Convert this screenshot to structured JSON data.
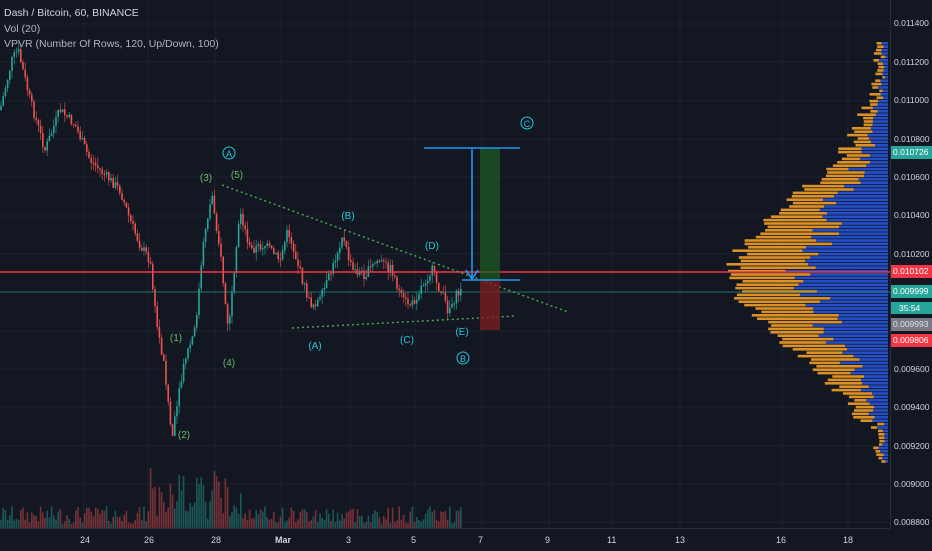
{
  "header": {
    "symbol_line": "Dash / Bitcoin, 60, BINANCE",
    "indicator_vol": "Vol (20)",
    "indicator_vpvr": "VPVR (Number Of Rows, 120, Up/Down, 100)"
  },
  "price_axis": {
    "ticks": [
      "0.011400",
      "0.011200",
      "0.011000",
      "0.010800",
      "0.010600",
      "0.010400",
      "0.010200",
      "0.009600",
      "0.009400",
      "0.009200",
      "0.009000",
      "0.008800"
    ],
    "tags": [
      {
        "text": "0.010726",
        "color": "#26a69a"
      },
      {
        "text": "0.010102",
        "color": "#f23645"
      },
      {
        "text": "0.009999",
        "color": "#26a69a"
      },
      {
        "text": "35:54",
        "color": "#26a69a"
      },
      {
        "text": "0.009993",
        "color": "#787b86"
      },
      {
        "text": "0.009806",
        "color": "#f23645"
      }
    ]
  },
  "time_axis": {
    "ticks": [
      "24",
      "26",
      "28",
      "Mar",
      "3",
      "5",
      "7",
      "9",
      "11",
      "13",
      "16",
      "18"
    ]
  },
  "wave_labels": {
    "A_circle": "A",
    "B_circle": "B",
    "C_circle": "C",
    "w1": "(1)",
    "w2": "(2)",
    "w3": "(3)",
    "w4": "(4)",
    "w5": "(5)",
    "wa": "(A)",
    "wb": "(B)",
    "wc": "(C)",
    "wd": "(D)",
    "we": "(E)"
  },
  "colors": {
    "background": "#131722",
    "up": "#26a69a",
    "down": "#ef5350",
    "hline_red": "#f23645",
    "hline_teal": "#26a69a",
    "trendline": "#4caf50",
    "target_box": "#2196f3",
    "vpvr_up": "#2962ff",
    "vpvr_down": "#ffa726",
    "wave_impulse": "#4caf50",
    "wave_abc": "#00bcd4"
  }
}
